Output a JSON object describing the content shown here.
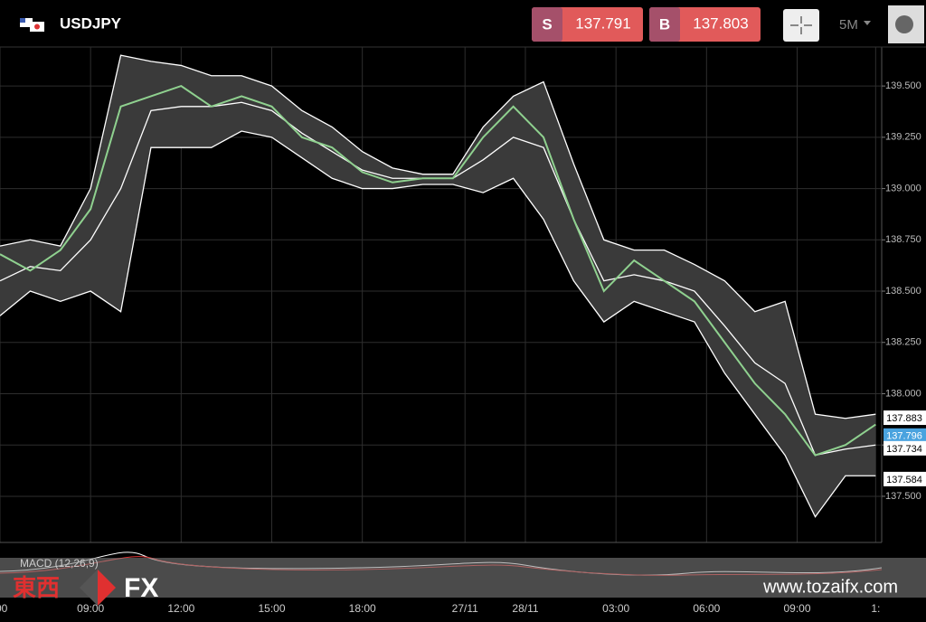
{
  "header": {
    "symbol": "USDJPY",
    "sell_label": "S",
    "sell_price": "137.791",
    "buy_label": "B",
    "buy_price": "137.803",
    "timeframe": "5M"
  },
  "chart_data": {
    "type": "line",
    "x": [
      0,
      1,
      2,
      3,
      4,
      5,
      6,
      7,
      8,
      9,
      10,
      11,
      12,
      13,
      14,
      15,
      16,
      17,
      18,
      19,
      20,
      21,
      22,
      23,
      24,
      25,
      26,
      27,
      28,
      29
    ],
    "series": [
      {
        "name": "Price",
        "color": "#8fd18f",
        "values": [
          138.68,
          138.6,
          138.7,
          138.9,
          139.4,
          139.45,
          139.5,
          139.4,
          139.45,
          139.4,
          139.25,
          139.2,
          139.08,
          139.03,
          139.05,
          139.05,
          139.25,
          139.4,
          139.25,
          138.85,
          138.5,
          138.65,
          138.55,
          138.45,
          138.25,
          138.05,
          137.9,
          137.7,
          137.75,
          137.85
        ]
      },
      {
        "name": "Upper",
        "color": "#ffffff",
        "values": [
          138.72,
          138.75,
          138.72,
          139.0,
          139.65,
          139.62,
          139.6,
          139.55,
          139.55,
          139.5,
          139.38,
          139.3,
          139.18,
          139.1,
          139.07,
          139.07,
          139.3,
          139.45,
          139.52,
          139.12,
          138.75,
          138.7,
          138.7,
          138.63,
          138.55,
          138.4,
          138.45,
          137.9,
          137.88,
          137.9
        ]
      },
      {
        "name": "Lower",
        "color": "#ffffff",
        "values": [
          138.38,
          138.5,
          138.45,
          138.5,
          138.4,
          139.2,
          139.2,
          139.2,
          139.28,
          139.25,
          139.15,
          139.05,
          139.0,
          139.0,
          139.02,
          139.02,
          138.98,
          139.05,
          138.85,
          138.55,
          138.35,
          138.45,
          138.4,
          138.35,
          138.1,
          137.9,
          137.7,
          137.4,
          137.6,
          137.6
        ]
      },
      {
        "name": "Middle",
        "color": "#ffffff",
        "values": [
          138.55,
          138.62,
          138.6,
          138.75,
          139.0,
          139.38,
          139.4,
          139.4,
          139.42,
          139.38,
          139.27,
          139.18,
          139.09,
          139.05,
          139.05,
          139.05,
          139.14,
          139.25,
          139.2,
          138.85,
          138.55,
          138.58,
          138.55,
          138.5,
          138.33,
          138.15,
          138.05,
          137.7,
          137.73,
          137.75
        ]
      }
    ],
    "band_color": "#3a3a3a",
    "xlim": [
      0,
      29.2
    ],
    "xticks": [
      {
        "value": 0,
        "label": ":00"
      },
      {
        "value": 3,
        "label": "09:00"
      },
      {
        "value": 6,
        "label": "12:00"
      },
      {
        "value": 9,
        "label": "15:00"
      },
      {
        "value": 12,
        "label": "18:00"
      },
      {
        "value": 15.4,
        "label": "27/11"
      },
      {
        "value": 17.4,
        "label": "28/11"
      },
      {
        "value": 20.4,
        "label": "03:00"
      },
      {
        "value": 23.4,
        "label": "06:00"
      },
      {
        "value": 26.4,
        "label": "09:00"
      },
      {
        "value": 29,
        "label": "1:"
      }
    ],
    "ylim": [
      137.275,
      139.69
    ],
    "yticks": [
      {
        "value": 137.5,
        "label": "137.500"
      },
      {
        "value": 137.75,
        "label": "137.750"
      },
      {
        "value": 138,
        "label": "138.000"
      },
      {
        "value": 138.25,
        "label": "138.250"
      },
      {
        "value": 138.5,
        "label": "138.500"
      },
      {
        "value": 138.75,
        "label": "138.750"
      },
      {
        "value": 139,
        "label": "139.000"
      },
      {
        "value": 139.25,
        "label": "139.250"
      },
      {
        "value": 139.5,
        "label": "139.500"
      }
    ],
    "grid": true,
    "price_tags": [
      {
        "value": 137.883,
        "color": "#ffffff"
      },
      {
        "value": 137.796,
        "color": "#4aa3df"
      },
      {
        "value": 137.734,
        "color": "#ffffff"
      },
      {
        "value": 137.584,
        "color": "#ffffff"
      }
    ],
    "indicator_label": "MACD (12,26,9)"
  },
  "watermark": {
    "brand_left": "東西",
    "brand_right": "FX",
    "url": "www.tozaifx.com"
  }
}
